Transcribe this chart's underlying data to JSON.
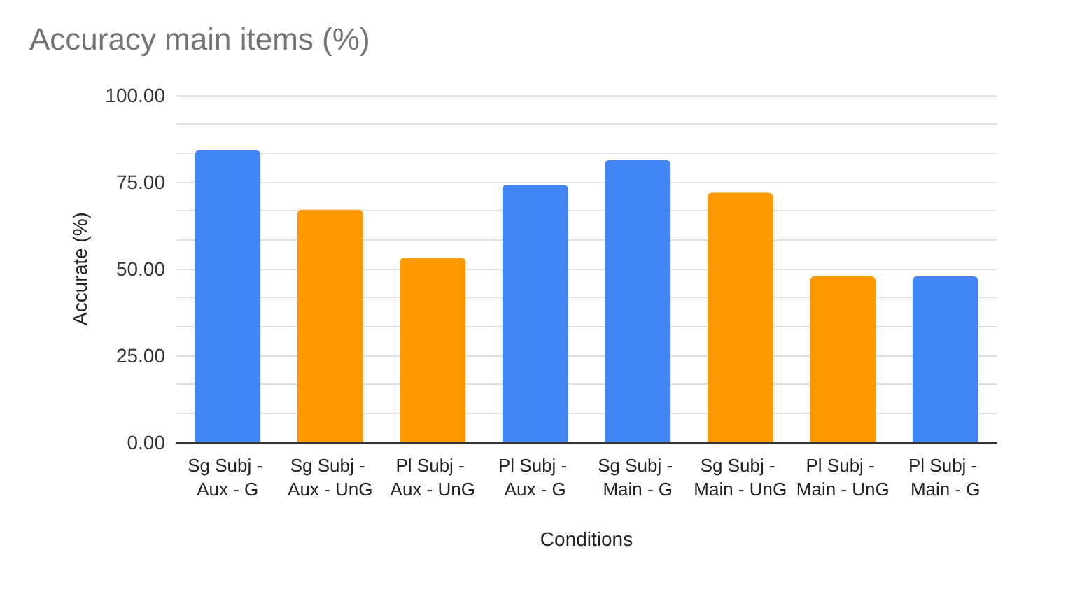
{
  "chart_data": {
    "type": "bar",
    "title": "Accuracy main items (%)",
    "xlabel": "Conditions",
    "ylabel": "Accurate (%)",
    "categories": [
      "Sg Subj - Aux - G",
      "Sg Subj - Aux - UnG",
      "Pl Subj - Aux - UnG",
      "Pl Subj - Aux - G",
      "Sg Subj - Main - G",
      "Sg Subj - Main - UnG",
      "Pl Subj - Main - UnG",
      "Pl Subj - Main - G"
    ],
    "values": [
      84.1,
      67.0,
      53.2,
      74.2,
      81.3,
      71.9,
      47.8,
      47.8
    ],
    "colors": [
      "#4285f4",
      "#ff9900",
      "#ff9900",
      "#4285f4",
      "#4285f4",
      "#ff9900",
      "#ff9900",
      "#4285f4"
    ],
    "ylim": [
      0,
      100
    ],
    "yticks": [
      {
        "value": 0,
        "label": "0.00"
      },
      {
        "value": 8.33,
        "label": null
      },
      {
        "value": 16.67,
        "label": null
      },
      {
        "value": 25,
        "label": "25.00"
      },
      {
        "value": 33.33,
        "label": null
      },
      {
        "value": 41.67,
        "label": null
      },
      {
        "value": 50,
        "label": "50.00"
      },
      {
        "value": 58.33,
        "label": null
      },
      {
        "value": 66.67,
        "label": null
      },
      {
        "value": 75,
        "label": "75.00"
      },
      {
        "value": 83.33,
        "label": null
      },
      {
        "value": 91.67,
        "label": null
      },
      {
        "value": 100,
        "label": "100.00"
      }
    ],
    "grid": "y"
  }
}
